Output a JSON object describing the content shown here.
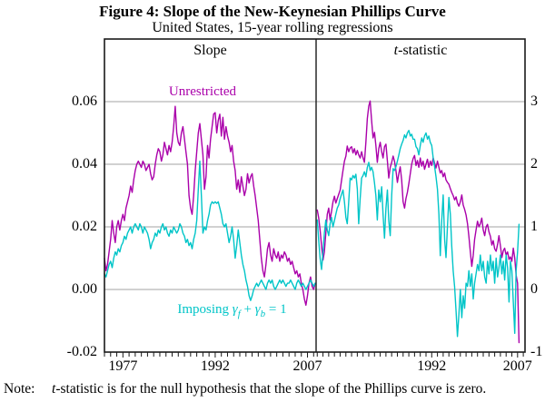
{
  "figure": {
    "title": "Figure 4: Slope of the New-Keynesian Phillips Curve",
    "subtitle": "United States, 15-year rolling regressions"
  },
  "panel_headers": {
    "left": "Slope",
    "right_t": "t",
    "right_rest": "-statistic"
  },
  "series_labels": {
    "unrestricted": "Unrestricted",
    "imposing_prefix": "Imposing ",
    "gamma1": "γ",
    "sub_f": "f",
    "plus": " + ",
    "gamma2": "γ",
    "sub_b": "b",
    "equals": " = 1"
  },
  "note": {
    "label": "Note:",
    "t": "t",
    "text": "-statistic is for the null hypothesis that the slope of the Phillips curve is zero."
  },
  "colors": {
    "unrestricted": "#AA00AA",
    "imposing": "#00C5C8",
    "grid": "#A3A3A3",
    "frame": "#1A1A1A"
  },
  "chart_data": [
    {
      "type": "line",
      "title": "Slope",
      "x_range": [
        1974.0,
        2008.4
      ],
      "y_range": [
        -0.02,
        0.08
      ],
      "y_gridlines": [
        0.06,
        0.04,
        0.02,
        0.0
      ],
      "y_axis_side": "left",
      "y_tick_labels": [
        "0.06",
        "0.04",
        "0.02",
        "0.00",
        "-0.02"
      ],
      "y_tick_values": [
        0.06,
        0.04,
        0.02,
        0.0,
        -0.02
      ],
      "x_tick_labels": [
        "1977",
        "1992",
        "2007"
      ],
      "x_tick_values": [
        1977,
        1992,
        2007
      ],
      "series": [
        {
          "name": "Unrestricted",
          "color_key": "unrestricted",
          "x_start": 1974.0,
          "dx": 0.25,
          "values": [
            0.01,
            0.006,
            0.008,
            0.012,
            0.016,
            0.022,
            0.018,
            0.015,
            0.02,
            0.022,
            0.019,
            0.022,
            0.024,
            0.022,
            0.026,
            0.028,
            0.03,
            0.033,
            0.031,
            0.035,
            0.038,
            0.04,
            0.041,
            0.04,
            0.039,
            0.041,
            0.04,
            0.038,
            0.039,
            0.04,
            0.037,
            0.035,
            0.036,
            0.04,
            0.043,
            0.045,
            0.044,
            0.041,
            0.043,
            0.047,
            0.045,
            0.043,
            0.046,
            0.044,
            0.047,
            0.052,
            0.0585,
            0.05,
            0.047,
            0.046,
            0.05,
            0.052,
            0.048,
            0.044,
            0.04,
            0.03,
            0.026,
            0.024,
            0.03,
            0.038,
            0.044,
            0.05,
            0.053,
            0.048,
            0.043,
            0.032,
            0.036,
            0.046,
            0.042,
            0.048,
            0.052,
            0.056,
            0.0565,
            0.05,
            0.054,
            0.056,
            0.049,
            0.055,
            0.048,
            0.052,
            0.049,
            0.047,
            0.044,
            0.046,
            0.041,
            0.038,
            0.032,
            0.035,
            0.031,
            0.036,
            0.033,
            0.03,
            0.032,
            0.037,
            0.034,
            0.036,
            0.037,
            0.033,
            0.03,
            0.026,
            0.022,
            0.016,
            0.01,
            0.006,
            0.004,
            0.008,
            0.013,
            0.015,
            0.011,
            0.009,
            0.013,
            0.011,
            0.01,
            0.012,
            0.009,
            0.011,
            0.01,
            0.012,
            0.011,
            0.009,
            0.01,
            0.008,
            0.009,
            0.007,
            0.005,
            0.006,
            0.004,
            0.005,
            0.002,
            0.0,
            -0.003,
            -0.005,
            -0.002,
            0.002,
            0.004,
            0.001,
            0.0,
            0.002
          ]
        },
        {
          "name": "Imposing γf + γb = 1",
          "color_key": "imposing",
          "x_start": 1974.0,
          "dx": 0.25,
          "values": [
            0.005,
            0.004,
            0.006,
            0.008,
            0.009,
            0.007,
            0.01,
            0.012,
            0.011,
            0.013,
            0.012,
            0.014,
            0.015,
            0.017,
            0.016,
            0.018,
            0.019,
            0.02,
            0.018,
            0.02,
            0.021,
            0.02,
            0.019,
            0.021,
            0.02,
            0.018,
            0.02,
            0.019,
            0.018,
            0.016,
            0.013,
            0.015,
            0.016,
            0.018,
            0.017,
            0.019,
            0.018,
            0.02,
            0.021,
            0.019,
            0.02,
            0.018,
            0.017,
            0.019,
            0.018,
            0.02,
            0.019,
            0.018,
            0.019,
            0.021,
            0.02,
            0.018,
            0.017,
            0.015,
            0.016,
            0.014,
            0.015,
            0.013,
            0.016,
            0.018,
            0.022,
            0.032,
            0.041,
            0.03,
            0.018,
            0.02,
            0.019,
            0.022,
            0.024,
            0.027,
            0.028,
            0.0275,
            0.028,
            0.0275,
            0.028,
            0.026,
            0.024,
            0.021,
            0.02,
            0.021,
            0.018,
            0.015,
            0.017,
            0.02,
            0.016,
            0.01,
            0.014,
            0.019,
            0.015,
            0.011,
            0.008,
            0.006,
            0.003,
            0.001,
            -0.002,
            -0.0035,
            -0.002,
            0.0,
            0.001,
            0.002,
            0.001,
            0.002,
            0.003,
            0.002,
            0.001,
            0.0,
            0.002,
            0.003,
            0.002,
            0.003,
            0.001,
            0.0,
            0.001,
            0.002,
            0.003,
            0.002,
            0.003,
            0.002,
            0.001,
            0.002,
            0.002,
            0.003,
            0.002,
            0.001,
            0.0,
            0.002,
            0.003,
            0.002,
            0.001,
            0.002,
            0.001,
            0.0,
            0.001,
            0.002,
            0.003,
            0.002,
            0.001,
            0.002
          ]
        }
      ]
    },
    {
      "type": "line",
      "title": "t-statistic",
      "x_range": [
        1971.8,
        2008.3
      ],
      "y_range": [
        -1,
        4
      ],
      "y_gridlines": [
        3,
        2,
        1,
        0
      ],
      "y_axis_side": "right",
      "y_tick_labels": [
        "3",
        "2",
        "1",
        "0",
        "-1"
      ],
      "y_tick_values": [
        3,
        2,
        1,
        0,
        -1
      ],
      "x_tick_labels": [
        "1992",
        "2007"
      ],
      "x_tick_values": [
        1992,
        2007
      ],
      "series": [
        {
          "name": "Unrestricted",
          "color_key": "unrestricted",
          "x_start": 1972.0,
          "dx": 0.25,
          "values": [
            1.27,
            1.15,
            0.95,
            0.7,
            0.47,
            0.6,
            0.9,
            1.2,
            1.3,
            1.11,
            1.25,
            1.4,
            1.49,
            1.38,
            1.45,
            1.52,
            1.59,
            1.74,
            1.9,
            2.05,
            2.13,
            2.29,
            2.2,
            2.26,
            2.28,
            2.18,
            2.25,
            2.15,
            2.22,
            2.15,
            2.1,
            2.2,
            2.1,
            2.03,
            2.35,
            2.73,
            2.93,
            3.01,
            2.7,
            2.42,
            2.51,
            2.3,
            2.03,
            2.25,
            2.35,
            2.2,
            2.1,
            2.28,
            2.32,
            2.05,
            1.78,
            1.95,
            2.03,
            2.13,
            2.05,
            1.9,
            1.71,
            1.85,
            1.96,
            1.75,
            1.4,
            1.3,
            1.45,
            1.55,
            1.69,
            1.85,
            2.0,
            2.09,
            2.14,
            1.98,
            2.06,
            1.95,
            2.1,
            1.97,
            2.05,
            1.92,
            2.0,
            2.08,
            1.95,
            2.05,
            1.98,
            2.1,
            2.02,
            1.94,
            2.05,
            1.95,
            1.86,
            1.9,
            1.8,
            1.86,
            1.75,
            1.71,
            1.68,
            1.61,
            1.55,
            1.5,
            1.43,
            1.48,
            1.38,
            1.33,
            1.4,
            1.51,
            1.35,
            1.28,
            1.19,
            1.05,
            0.85,
            0.6,
            0.37,
            0.55,
            0.8,
            0.95,
            1.09,
            1.0,
            1.05,
            1.14,
            0.95,
            0.86,
            1.0,
            1.04,
            0.92,
            0.85,
            0.71,
            0.78,
            0.65,
            0.61,
            0.72,
            0.86,
            0.7,
            0.51,
            0.62,
            0.66,
            0.55,
            0.6,
            0.48,
            0.52,
            0.45,
            0.66,
            0.5,
            0.23,
            0.1,
            -0.85
          ]
        },
        {
          "name": "Imposing γf + γb = 1",
          "color_key": "imposing",
          "x_start": 1972.0,
          "dx": 0.25,
          "values": [
            1.11,
            0.8,
            0.5,
            0.32,
            0.6,
            0.9,
            1.11,
            0.95,
            0.86,
            1.05,
            1.15,
            1.0,
            1.1,
            1.2,
            1.3,
            1.35,
            1.45,
            1.52,
            1.59,
            1.4,
            1.15,
            1.05,
            1.4,
            1.78,
            1.75,
            1.82,
            1.78,
            1.84,
            1.6,
            1.05,
            1.45,
            1.78,
            1.82,
            1.88,
            1.8,
            1.95,
            2.03,
            1.9,
            1.95,
            1.88,
            1.7,
            1.5,
            1.11,
            1.59,
            1.4,
            1.64,
            1.2,
            0.82,
            1.3,
            1.59,
            1.1,
            0.86,
            1.5,
            1.93,
            1.9,
            1.96,
            2.05,
            2.15,
            2.25,
            2.32,
            2.38,
            2.47,
            2.42,
            2.5,
            2.54,
            2.45,
            2.48,
            2.4,
            2.4,
            2.28,
            2.25,
            2.15,
            2.3,
            2.42,
            2.35,
            2.45,
            2.5,
            2.4,
            2.45,
            2.35,
            2.3,
            2.1,
            1.97,
            1.8,
            1.6,
            1.2,
            0.54,
            1.1,
            1.51,
            0.8,
            0.51,
            1.0,
            1.47,
            1.2,
            0.7,
            0.3,
            0.04,
            -0.35,
            -0.75,
            -0.4,
            0.0,
            -0.45,
            -0.1,
            -0.3,
            0.1,
            0.05,
            0.3,
            0.05,
            0.25,
            -0.15,
            0.1,
            0.25,
            0.4,
            0.3,
            0.55,
            0.3,
            0.45,
            0.2,
            0.1,
            0.45,
            0.25,
            0.55,
            0.3,
            0.45,
            0.1,
            0.5,
            0.2,
            0.35,
            0.55,
            0.25,
            0.45,
            0.15,
            0.55,
            0.35,
            -0.2,
            0.45,
            0.3,
            -0.2,
            -0.7,
            0.3,
            0.6,
            1.04
          ]
        }
      ]
    }
  ]
}
